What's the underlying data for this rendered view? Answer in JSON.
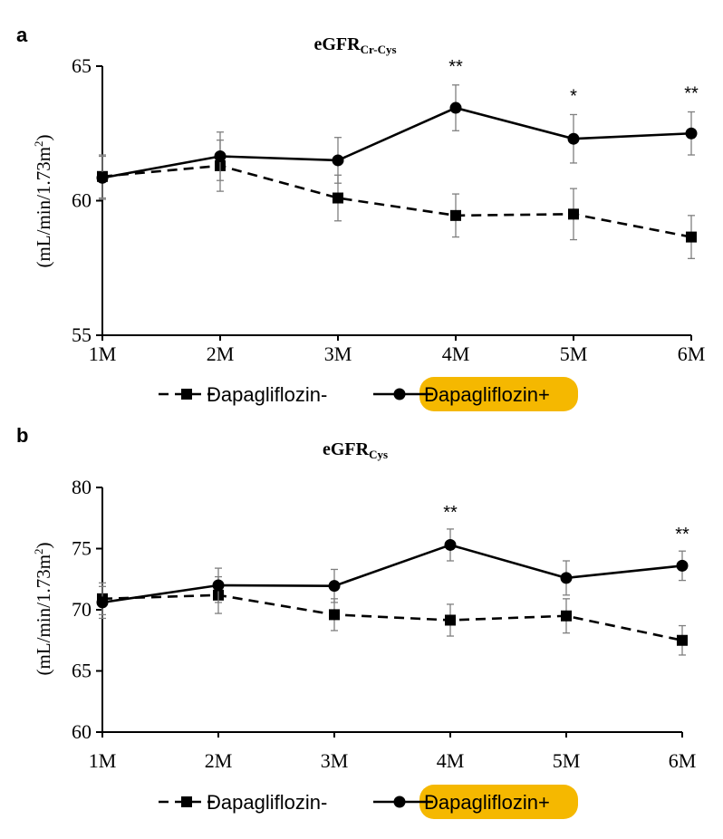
{
  "chart_data": [
    {
      "type": "line",
      "panel": "a",
      "title": "eGFR",
      "title_subscript": "Cr-Cys",
      "ylabel": "(mL/min/1.73m",
      "ylabel_sup": "2",
      "ylabel_close": ")",
      "categories": [
        "1M",
        "2M",
        "3M",
        "4M",
        "5M",
        "6M"
      ],
      "ylim": [
        55,
        65
      ],
      "yticks": [
        55,
        60,
        65
      ],
      "series": [
        {
          "name": "Dapagliflozin-",
          "style": "dashed",
          "marker": "square",
          "values": [
            60.9,
            61.3,
            60.1,
            59.45,
            59.5,
            58.65
          ],
          "errors": [
            0.8,
            0.95,
            0.85,
            0.8,
            0.95,
            0.8
          ]
        },
        {
          "name": "Dapagliflozin+",
          "style": "solid",
          "marker": "circle",
          "values": [
            60.85,
            61.65,
            61.5,
            63.45,
            62.3,
            62.5
          ],
          "errors": [
            0.8,
            0.9,
            0.85,
            0.85,
            0.9,
            0.8
          ]
        }
      ],
      "annotations": [
        "",
        "",
        "",
        "**",
        "*",
        "**"
      ]
    },
    {
      "type": "line",
      "panel": "b",
      "title": "eGFR",
      "title_subscript": "Cys",
      "ylabel": "(mL/min/1.73m",
      "ylabel_sup": "2",
      "ylabel_close": ")",
      "categories": [
        "1M",
        "2M",
        "3M",
        "4M",
        "5M",
        "6M"
      ],
      "ylim": [
        60,
        80
      ],
      "yticks": [
        60,
        65,
        70,
        75,
        80
      ],
      "series": [
        {
          "name": "Dapagliflozin-",
          "style": "dashed",
          "marker": "square",
          "values": [
            70.9,
            71.2,
            69.6,
            69.15,
            69.5,
            67.5
          ],
          "errors": [
            1.3,
            1.5,
            1.3,
            1.3,
            1.4,
            1.2
          ]
        },
        {
          "name": "Dapagliflozin+",
          "style": "solid",
          "marker": "circle",
          "values": [
            70.6,
            72.0,
            71.95,
            75.3,
            72.6,
            73.6
          ],
          "errors": [
            1.3,
            1.4,
            1.35,
            1.3,
            1.4,
            1.2
          ]
        }
      ],
      "annotations": [
        "",
        "",
        "",
        "**",
        "",
        "**"
      ]
    }
  ],
  "legend_highlight_color": "#f5b800",
  "line_color": "#000000",
  "errorbar_color": "#7f7f7f"
}
